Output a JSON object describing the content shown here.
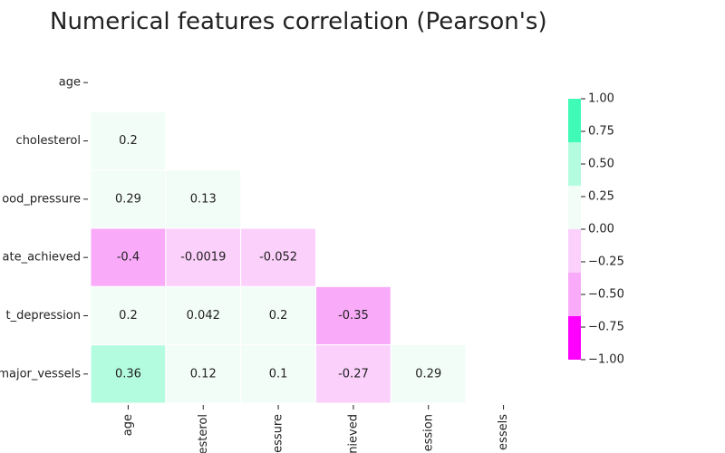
{
  "chart_data": {
    "type": "heatmap",
    "title": "Numerical features correlation (Pearson's)",
    "row_labels": [
      "age",
      "cholesterol",
      "ood_pressure",
      "ate_achieved",
      "t_depression",
      "major_vessels"
    ],
    "column_labels": [
      "age",
      "esterol",
      "essure",
      "nieved",
      "ession",
      "essels"
    ],
    "values": [
      [
        null,
        null,
        null,
        null,
        null,
        null
      ],
      [
        0.2,
        null,
        null,
        null,
        null,
        null
      ],
      [
        0.29,
        0.13,
        null,
        null,
        null,
        null
      ],
      [
        -0.4,
        -0.0019,
        -0.052,
        null,
        null,
        null
      ],
      [
        0.2,
        0.042,
        0.2,
        -0.35,
        null,
        null
      ],
      [
        0.36,
        0.12,
        0.1,
        -0.27,
        0.29,
        null
      ]
    ],
    "colors": [
      "#ff00ff",
      "#f9aaf9",
      "#fbd0fb",
      "#f3fdf8",
      "#b4fce0",
      "#40fbb8"
    ],
    "clim": [
      -1,
      1
    ],
    "cticks": [
      {
        "value": -1,
        "label": "−1.00"
      },
      {
        "value": -0.75,
        "label": "−0.75"
      },
      {
        "value": -0.5,
        "label": "−0.50"
      },
      {
        "value": -0.25,
        "label": "−0.25"
      },
      {
        "value": 0,
        "label": "0.00"
      },
      {
        "value": 0.25,
        "label": "0.25"
      },
      {
        "value": 0.5,
        "label": "0.50"
      },
      {
        "value": 0.75,
        "label": "0.75"
      },
      {
        "value": 1,
        "label": "1.00"
      }
    ]
  }
}
